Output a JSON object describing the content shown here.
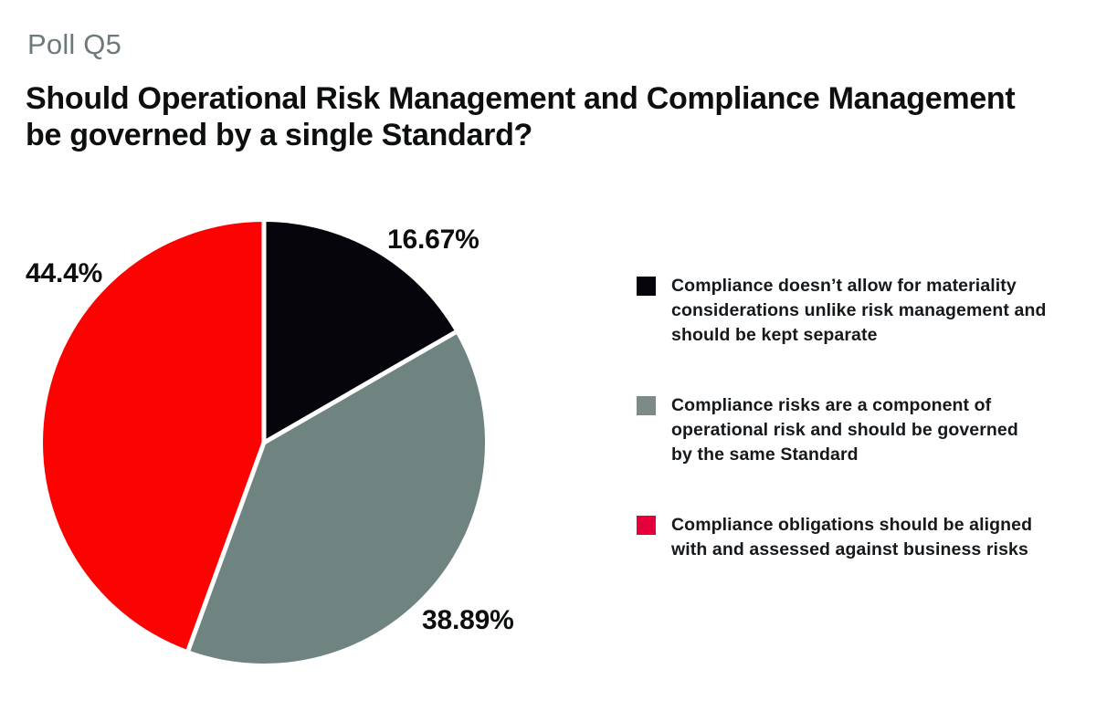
{
  "header": {
    "eyebrow": "Poll Q5",
    "title": "Should Operational Risk Management and Compliance Management\nbe governed by a single Standard?"
  },
  "chart_data": {
    "type": "pie",
    "title": "Poll Q5 — Should Operational Risk Management and Compliance Management be governed by a single Standard?",
    "start_angle_deg": 0,
    "direction": "clockwise",
    "slice_gap_color": "#ffffff",
    "legend_position": "right",
    "slices": [
      {
        "label": "Compliance doesn’t allow for materiality\nconsiderations unlike risk management and\nshould be kept separate",
        "value_pct": 16.67,
        "display_label": "16.67%",
        "color": "#05050b",
        "legend_color": "#05050b"
      },
      {
        "label": "Compliance risks are a component of\noperational risk and should be governed\nby the same Standard",
        "value_pct": 38.89,
        "display_label": "38.89%",
        "color": "#6f8381",
        "legend_color": "#7d8a88"
      },
      {
        "label": "Compliance obligations should be aligned\nwith and assessed against business risks",
        "value_pct": 44.44,
        "display_label": "44.4%",
        "color": "#fa0301",
        "legend_color": "#e4003a"
      }
    ]
  }
}
